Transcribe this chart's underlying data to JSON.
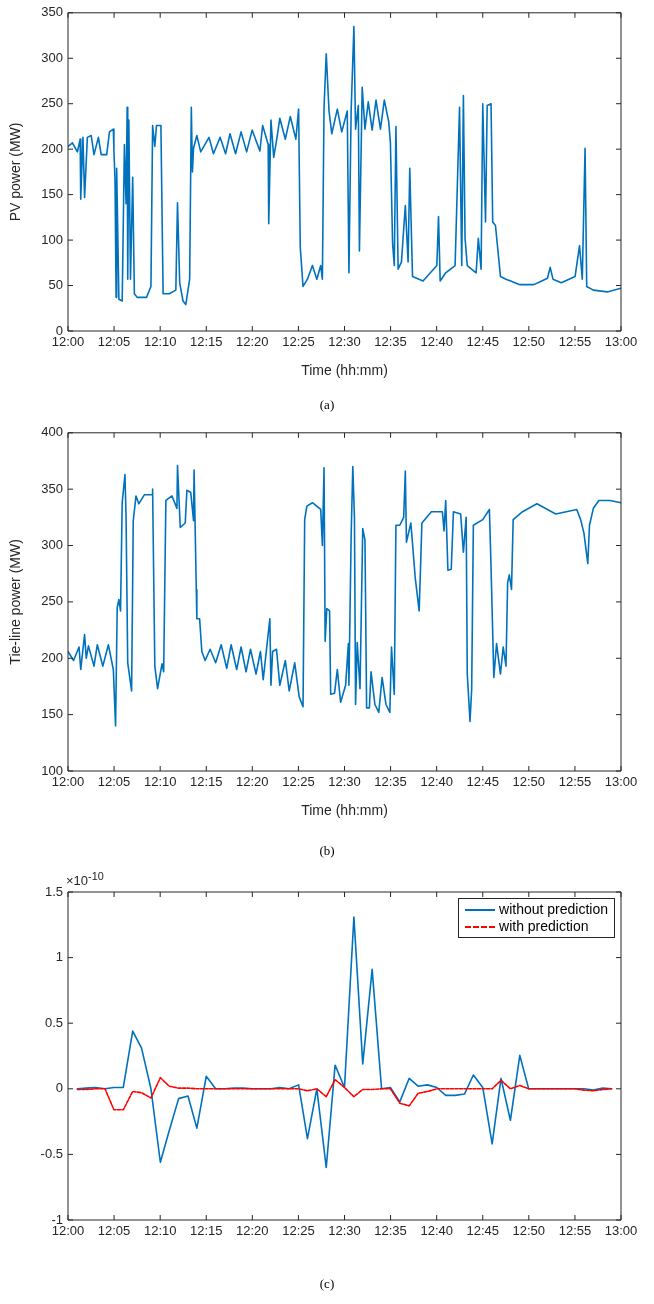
{
  "chart_data": [
    {
      "type": "line",
      "xlabel": "Time (hh:mm)",
      "ylabel": "PV power (MW)",
      "annotations": [
        "(a)"
      ],
      "marker": "none",
      "line_style": "solid",
      "legend": false,
      "grid": false,
      "xlim": [
        12,
        13
      ],
      "xticks": [
        {
          "value": 12,
          "label": "12:00"
        },
        {
          "value": 12.0833,
          "label": "12:05"
        },
        {
          "value": 12.1667,
          "label": "12:10"
        },
        {
          "value": 12.25,
          "label": "12:15"
        },
        {
          "value": 12.3333,
          "label": "12:20"
        },
        {
          "value": 12.4167,
          "label": "12:25"
        },
        {
          "value": 12.5,
          "label": "12:30"
        },
        {
          "value": 12.5833,
          "label": "12:35"
        },
        {
          "value": 12.6667,
          "label": "12:40"
        },
        {
          "value": 12.75,
          "label": "12:45"
        },
        {
          "value": 12.8333,
          "label": "12:50"
        },
        {
          "value": 12.9167,
          "label": "12:55"
        },
        {
          "value": 13,
          "label": "13:00"
        }
      ],
      "ylim": [
        0,
        350
      ],
      "yticks": [
        0,
        50,
        100,
        150,
        200,
        250,
        300,
        350
      ],
      "series": [
        {
          "color": "#0072bd",
          "x": [
            12.0,
            12.008,
            12.017,
            12.022,
            12.023,
            12.027,
            12.03,
            12.035,
            12.042,
            12.047,
            12.055,
            12.06,
            12.07,
            12.075,
            12.082,
            12.083,
            12.085,
            12.087,
            12.088,
            12.092,
            12.098,
            12.102,
            12.105,
            12.107,
            12.108,
            12.11,
            12.113,
            12.117,
            12.12,
            12.125,
            12.142,
            12.15,
            12.153,
            12.157,
            12.16,
            12.168,
            12.172,
            12.183,
            12.195,
            12.198,
            12.202,
            12.208,
            12.213,
            12.22,
            12.223,
            12.225,
            12.227,
            12.233,
            12.24,
            12.255,
            12.263,
            12.275,
            12.285,
            12.293,
            12.303,
            12.313,
            12.323,
            12.333,
            12.347,
            12.352,
            12.362,
            12.363,
            12.367,
            12.372,
            12.378,
            12.383,
            12.393,
            12.402,
            12.412,
            12.417,
            12.42,
            12.425,
            12.433,
            12.442,
            12.45,
            12.457,
            12.46,
            12.463,
            12.467,
            12.472,
            12.477,
            12.487,
            12.495,
            12.505,
            12.508,
            12.512,
            12.517,
            12.52,
            12.525,
            12.527,
            12.532,
            12.537,
            12.543,
            12.55,
            12.557,
            12.565,
            12.572,
            12.58,
            12.583,
            12.587,
            12.59,
            12.593,
            12.597,
            12.603,
            12.61,
            12.615,
            12.618,
            12.623,
            12.642,
            12.667,
            12.67,
            12.673,
            12.683,
            12.7,
            12.708,
            12.712,
            12.715,
            12.718,
            12.722,
            12.738,
            12.742,
            12.747,
            12.75,
            12.755,
            12.758,
            12.765,
            12.768,
            12.773,
            12.782,
            12.792,
            12.817,
            12.842,
            12.85,
            12.867,
            12.872,
            12.877,
            12.892,
            12.917,
            12.925,
            12.93,
            12.935,
            12.938,
            12.95,
            12.975,
            13.0
          ],
          "values": [
            203,
            207,
            197,
            211,
            145,
            213,
            147,
            213,
            215,
            194,
            213,
            194,
            194,
            219,
            222,
            199,
            167,
            37,
            179,
            35,
            33,
            205,
            140,
            246,
            57,
            232,
            57,
            169,
            41,
            37,
            37,
            49,
            226,
            203,
            226,
            226,
            41,
            41,
            45,
            141,
            53,
            33,
            29,
            57,
            246,
            175,
            201,
            215,
            197,
            213,
            195,
            213,
            195,
            217,
            195,
            219,
            197,
            221,
            198,
            226,
            205,
            118,
            232,
            191,
            213,
            234,
            211,
            236,
            211,
            244,
            92,
            49,
            57,
            72,
            57,
            72,
            57,
            246,
            305,
            242,
            217,
            244,
            219,
            242,
            64,
            242,
            335,
            222,
            248,
            88,
            268,
            222,
            252,
            221,
            254,
            222,
            254,
            230,
            207,
            96,
            72,
            225,
            68,
            76,
            138,
            76,
            179,
            60,
            55,
            72,
            126,
            55,
            64,
            72,
            246,
            72,
            259,
            102,
            72,
            64,
            102,
            68,
            250,
            120,
            248,
            250,
            120,
            116,
            60,
            57,
            51,
            51,
            53,
            58,
            70,
            57,
            53,
            60,
            94,
            57,
            201,
            49,
            45,
            43,
            47
          ]
        }
      ]
    },
    {
      "type": "line",
      "xlabel": "Time (hh:mm)",
      "ylabel": "Tie-line power (MW)",
      "annotations": [
        "(b)"
      ],
      "marker": "none",
      "line_style": "solid",
      "legend": false,
      "grid": false,
      "xlim": [
        12,
        13
      ],
      "xticks": [
        {
          "value": 12,
          "label": "12:00"
        },
        {
          "value": 12.0833,
          "label": "12:05"
        },
        {
          "value": 12.1667,
          "label": "12:10"
        },
        {
          "value": 12.25,
          "label": "12:15"
        },
        {
          "value": 12.3333,
          "label": "12:20"
        },
        {
          "value": 12.4167,
          "label": "12:25"
        },
        {
          "value": 12.5,
          "label": "12:30"
        },
        {
          "value": 12.5833,
          "label": "12:35"
        },
        {
          "value": 12.6667,
          "label": "12:40"
        },
        {
          "value": 12.75,
          "label": "12:45"
        },
        {
          "value": 12.8333,
          "label": "12:50"
        },
        {
          "value": 12.9167,
          "label": "12:55"
        },
        {
          "value": 13,
          "label": "13:00"
        }
      ],
      "ylim": [
        100,
        400
      ],
      "yticks": [
        100,
        150,
        200,
        250,
        300,
        350,
        400
      ],
      "series": [
        {
          "color": "#0072bd",
          "x": [
            12.0,
            12.01,
            12.02,
            12.023,
            12.03,
            12.033,
            12.037,
            12.047,
            12.053,
            12.063,
            12.073,
            12.082,
            12.086,
            12.089,
            12.092,
            12.095,
            12.098,
            12.103,
            12.105,
            12.108,
            12.115,
            12.118,
            12.123,
            12.128,
            12.138,
            12.152,
            12.153,
            12.157,
            12.162,
            12.17,
            12.173,
            12.177,
            12.188,
            12.197,
            12.198,
            12.203,
            12.212,
            12.215,
            12.222,
            12.227,
            12.228,
            12.232,
            12.233,
            12.238,
            12.242,
            12.248,
            12.257,
            12.267,
            12.277,
            12.287,
            12.295,
            12.305,
            12.313,
            12.322,
            12.33,
            12.34,
            12.348,
            12.353,
            12.365,
            12.367,
            12.37,
            12.377,
            12.383,
            12.393,
            12.4,
            12.41,
            12.418,
            12.425,
            12.428,
            12.432,
            12.442,
            12.457,
            12.46,
            12.463,
            12.465,
            12.468,
            12.473,
            12.475,
            12.482,
            12.487,
            12.493,
            12.502,
            12.507,
            12.508,
            12.512,
            12.515,
            12.518,
            12.52,
            12.523,
            12.528,
            12.533,
            12.537,
            12.54,
            12.545,
            12.548,
            12.555,
            12.562,
            12.568,
            12.575,
            12.582,
            12.585,
            12.59,
            12.593,
            12.6,
            12.607,
            12.61,
            12.612,
            12.62,
            12.628,
            12.635,
            12.64,
            12.657,
            12.677,
            12.68,
            12.683,
            12.687,
            12.693,
            12.697,
            12.71,
            12.715,
            12.72,
            12.722,
            12.727,
            12.73,
            12.733,
            12.75,
            12.762,
            12.765,
            12.77,
            12.775,
            12.782,
            12.787,
            12.792,
            12.795,
            12.798,
            12.802,
            12.805,
            12.822,
            12.848,
            12.882,
            12.92,
            12.927,
            12.933,
            12.94,
            12.943,
            12.95,
            12.96,
            12.98,
            13.0
          ],
          "values": [
            206,
            198,
            210,
            190,
            221,
            200,
            211,
            193,
            212,
            193,
            212,
            190,
            140,
            245,
            252,
            242,
            338,
            363,
            325,
            196,
            171,
            322,
            344,
            337,
            345,
            345,
            350,
            193,
            173,
            195,
            188,
            340,
            344,
            333,
            371,
            316,
            320,
            349,
            347,
            322,
            367,
            261,
            235,
            235,
            206,
            198,
            208,
            196,
            212,
            191,
            212,
            190,
            210,
            188,
            208,
            186,
            206,
            181,
            235,
            176,
            206,
            208,
            176,
            198,
            171,
            196,
            166,
            157,
            323,
            335,
            338,
            332,
            300,
            369,
            215,
            244,
            242,
            168,
            169,
            190,
            161,
            176,
            213,
            176,
            308,
            370,
            325,
            159,
            214,
            173,
            315,
            305,
            156,
            156,
            188,
            159,
            152,
            183,
            159,
            152,
            210,
            168,
            318,
            318,
            325,
            366,
            303,
            320,
            271,
            242,
            320,
            330,
            330,
            313,
            340,
            278,
            279,
            330,
            328,
            294,
            325,
            186,
            144,
            173,
            318,
            323,
            332,
            281,
            183,
            213,
            186,
            210,
            193,
            267,
            274,
            261,
            323,
            330,
            337,
            328,
            332,
            323,
            311,
            284,
            318,
            333,
            340,
            340,
            338
          ]
        }
      ]
    },
    {
      "type": "line",
      "annotations": [
        "×10$^{-10}$",
        "(c)"
      ],
      "marker": "none",
      "legend": "top right",
      "grid": false,
      "xlim": [
        12,
        13
      ],
      "xticks": [
        {
          "value": 12,
          "label": "12:00"
        },
        {
          "value": 12.0833,
          "label": "12:05"
        },
        {
          "value": 12.1667,
          "label": "12:10"
        },
        {
          "value": 12.25,
          "label": "12:15"
        },
        {
          "value": 12.3333,
          "label": "12:20"
        },
        {
          "value": 12.4167,
          "label": "12:25"
        },
        {
          "value": 12.5,
          "label": "12:30"
        },
        {
          "value": 12.5833,
          "label": "12:35"
        },
        {
          "value": 12.6667,
          "label": "12:40"
        },
        {
          "value": 12.75,
          "label": "12:45"
        },
        {
          "value": 12.8333,
          "label": "12:50"
        },
        {
          "value": 12.9167,
          "label": "12:55"
        },
        {
          "value": 13,
          "label": "13:00"
        }
      ],
      "ylim": [
        -1,
        1.5
      ],
      "yticks": [
        -1,
        -0.5,
        0,
        0.5,
        1,
        1.5
      ],
      "x": [
        12.017,
        12.033,
        12.05,
        12.067,
        12.083,
        12.1,
        12.117,
        12.133,
        12.15,
        12.167,
        12.183,
        12.2,
        12.217,
        12.233,
        12.25,
        12.267,
        12.283,
        12.3,
        12.317,
        12.333,
        12.35,
        12.367,
        12.383,
        12.4,
        12.417,
        12.433,
        12.45,
        12.467,
        12.483,
        12.5,
        12.517,
        12.533,
        12.55,
        12.567,
        12.583,
        12.6,
        12.617,
        12.633,
        12.65,
        12.667,
        12.683,
        12.7,
        12.717,
        12.733,
        12.75,
        12.767,
        12.783,
        12.8,
        12.817,
        12.833,
        12.85,
        12.867,
        12.883,
        12.9,
        12.917,
        12.933,
        12.95,
        12.967,
        12.983
      ],
      "series": [
        {
          "name": "without prediction",
          "color": "#0072bd",
          "line_style": "solid",
          "values": [
            0,
            0.005,
            0.01,
            0,
            0.01,
            0.01,
            0.44,
            0.31,
            0,
            -0.56,
            -0.32,
            -0.075,
            -0.055,
            -0.3,
            0.095,
            0,
            0,
            0.005,
            0.005,
            0,
            0,
            0,
            0.01,
            0,
            0.03,
            -0.38,
            0,
            -0.6,
            0.18,
            0.01,
            1.31,
            0.19,
            0.91,
            0,
            0.01,
            -0.1,
            0.08,
            0.02,
            0.03,
            0.01,
            -0.05,
            -0.05,
            -0.04,
            0.105,
            0.01,
            -0.42,
            0.08,
            -0.24,
            0.255,
            0,
            0,
            0,
            0,
            0,
            0,
            0,
            -0.01,
            0.005,
            0
          ]
        },
        {
          "name": "with prediction",
          "color": "#ff0000",
          "line_style": "dashed",
          "values": [
            -0.005,
            -0.005,
            0,
            0,
            -0.16,
            -0.16,
            -0.02,
            -0.03,
            -0.07,
            0.085,
            0.02,
            0.005,
            0.005,
            0,
            0,
            0,
            0,
            0,
            0,
            0,
            0,
            0,
            0,
            0,
            0,
            -0.015,
            0,
            -0.06,
            0.07,
            0.01,
            -0.06,
            -0.005,
            -0.005,
            0,
            0,
            -0.11,
            -0.13,
            -0.035,
            -0.02,
            0,
            0,
            0,
            0,
            0,
            0,
            0,
            0.065,
            0,
            0.025,
            0,
            0,
            0,
            0,
            0,
            0,
            -0.01,
            -0.015,
            -0.005,
            0
          ]
        }
      ]
    }
  ]
}
